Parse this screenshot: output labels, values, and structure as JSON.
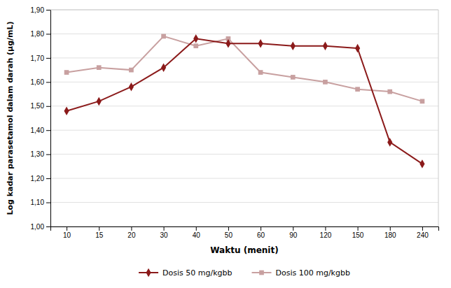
{
  "chart_data": {
    "type": "line",
    "categories": [
      "10",
      "15",
      "20",
      "30",
      "40",
      "50",
      "60",
      "90",
      "120",
      "150",
      "180",
      "240"
    ],
    "series": [
      {
        "name": "Dosis 50 mg/kgbb",
        "color": "#8B1A1A",
        "marker": "diamond",
        "values": [
          1.48,
          1.52,
          1.58,
          1.66,
          1.78,
          1.76,
          1.76,
          1.75,
          1.75,
          1.74,
          1.35,
          1.26
        ]
      },
      {
        "name": "Dosis 100 mg/kgbb",
        "color": "#C8A0A0",
        "marker": "square",
        "values": [
          1.64,
          1.66,
          1.65,
          1.79,
          1.75,
          1.78,
          1.64,
          1.62,
          1.6,
          1.57,
          1.56,
          1.52
        ]
      }
    ],
    "x_label": "Waktu (menit)",
    "y_label": "Log kadar parasetamol dalam darah (μg/mL)",
    "ylim": [
      1.0,
      1.9
    ],
    "yticks": [
      {
        "value": 1.0,
        "label": "1,00"
      },
      {
        "value": 1.1,
        "label": "1,10"
      },
      {
        "value": 1.2,
        "label": "1,20"
      },
      {
        "value": 1.3,
        "label": "1,30"
      },
      {
        "value": 1.4,
        "label": "1,40"
      },
      {
        "value": 1.5,
        "label": "1,50"
      },
      {
        "value": 1.6,
        "label": "1,60"
      },
      {
        "value": 1.7,
        "label": "1,70"
      },
      {
        "value": 1.8,
        "label": "1,80"
      },
      {
        "value": 1.9,
        "label": "1,90"
      }
    ],
    "grid": true,
    "legend": "bottom"
  }
}
